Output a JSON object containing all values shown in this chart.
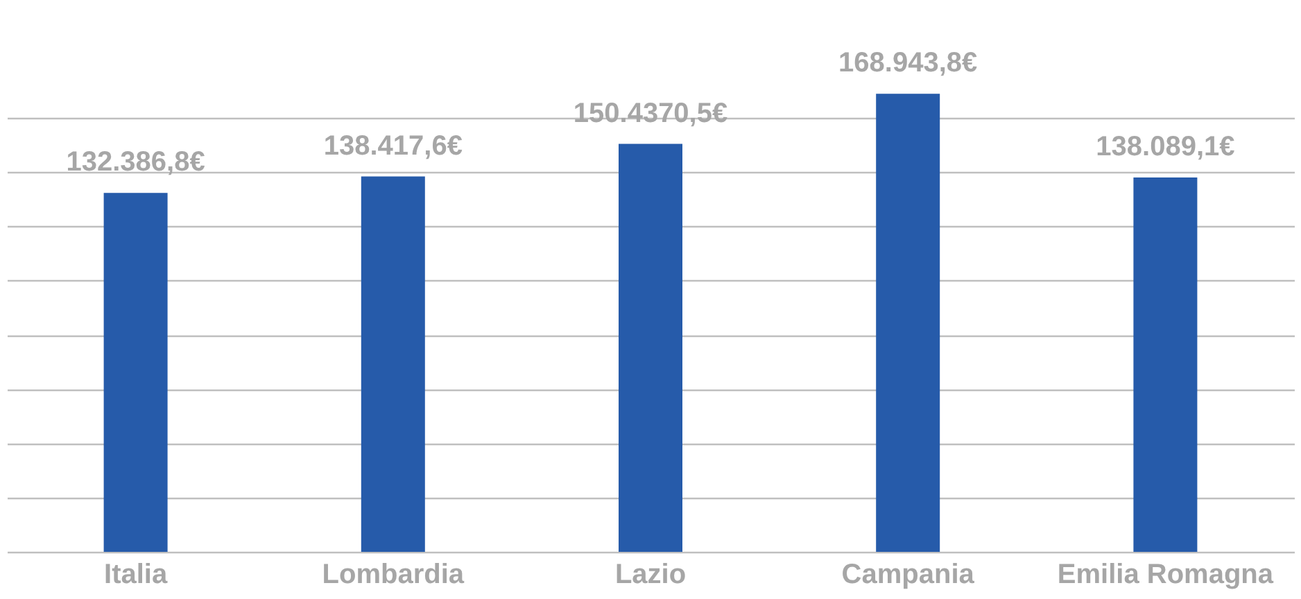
{
  "chart_data": {
    "type": "bar",
    "categories": [
      "Italia",
      "Lombardia",
      "Lazio",
      "Campania",
      "Emilia Romagna"
    ],
    "values": [
      132386.8,
      138417.6,
      150437.05,
      168943.8,
      138089.1
    ],
    "value_labels": [
      "132.386,8€",
      "138.417,6€",
      "150.4370,5€",
      "168.943,8€",
      "138.089,1€"
    ],
    "color": "#265baa",
    "grid": "y",
    "tick_labels": "x"
  }
}
